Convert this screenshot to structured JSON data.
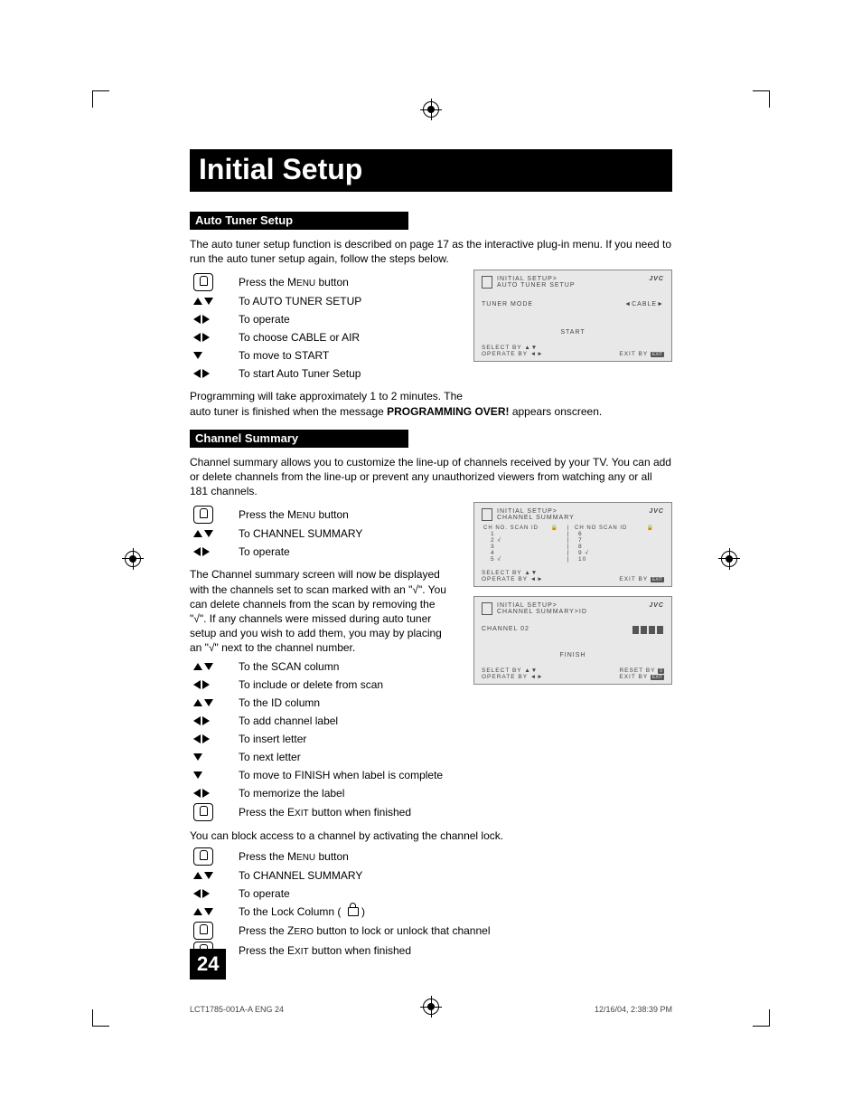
{
  "page_title": "Initial Setup",
  "section1": {
    "heading": "Auto Tuner Setup",
    "intro": "The auto tuner setup function is described on page 17 as the interactive plug-in menu.  If you need to run the auto tuner setup again, follow the steps below.",
    "steps": [
      {
        "icon": "hand",
        "text": "Press the MENU button"
      },
      {
        "icon": "updown",
        "text": "To AUTO TUNER SETUP"
      },
      {
        "icon": "leftright",
        "text": "To operate"
      },
      {
        "icon": "leftright",
        "text": "To choose CABLE or AIR"
      },
      {
        "icon": "down",
        "text": "To move to START"
      },
      {
        "icon": "leftright",
        "text": "To start Auto Tuner Setup"
      }
    ],
    "outro_a": "Programming will take approximately 1 to 2 minutes.  The",
    "outro_b": "auto tuner is finished when the message ",
    "outro_bold": "PROGRAMMING OVER!",
    "outro_c": " appears onscreen."
  },
  "section2": {
    "heading": "Channel Summary",
    "intro": "Channel summary allows you to customize the line-up of channels received by your TV. You can add or delete channels from the line-up or prevent any unauthorized viewers from watching any or all 181 channels.",
    "steps_a": [
      {
        "icon": "hand",
        "text": "Press the MENU button"
      },
      {
        "icon": "updown",
        "text": "To CHANNEL SUMMARY"
      },
      {
        "icon": "leftright",
        "text": "To operate"
      }
    ],
    "para": "The Channel summary screen will now be displayed with the channels set to scan marked with an \"√\". You can delete channels from the scan by removing the \"√\". If any channels were missed during auto tuner setup and you wish to add them, you may by placing an \"√\" next to the channel number.",
    "steps_b": [
      {
        "icon": "updown",
        "text": "To the SCAN column"
      },
      {
        "icon": "leftright",
        "text": "To include or delete from scan"
      },
      {
        "icon": "updown",
        "text": "To the ID column"
      },
      {
        "icon": "leftright",
        "text": "To add channel label"
      },
      {
        "icon": "leftright",
        "text": "To insert letter"
      },
      {
        "icon": "down",
        "text": "To next letter"
      },
      {
        "icon": "down",
        "text": "To move to FINISH when label is complete"
      },
      {
        "icon": "leftright",
        "text": "To memorize the label"
      },
      {
        "icon": "hand",
        "text": "Press the EXIT button when finished"
      }
    ],
    "lock_intro": "You can block access to a channel by activating the channel lock.",
    "steps_c": [
      {
        "icon": "hand",
        "text": "Press the MENU button"
      },
      {
        "icon": "updown",
        "text": "To CHANNEL SUMMARY"
      },
      {
        "icon": "leftright",
        "text": "To operate"
      },
      {
        "icon": "updown",
        "text": "To the Lock Column ( LOCK )"
      },
      {
        "icon": "hand",
        "text": "Press the ZERO button to lock or unlock that channel"
      },
      {
        "icon": "hand",
        "text": "Press the EXIT button when finished"
      }
    ]
  },
  "osd1": {
    "breadcrumb1": "INITIAL SETUP>",
    "breadcrumb2": "AUTO TUNER SETUP",
    "brand": "JVC",
    "tuner_mode_label": "TUNER MODE",
    "tuner_mode_value": "CABLE",
    "start": "START",
    "select": "SELECT  BY",
    "operate": "OPERATE BY",
    "exit": "EXIT BY"
  },
  "osd2": {
    "breadcrumb1": "INITIAL SETUP>",
    "breadcrumb2": "CHANNEL SUMMARY",
    "brand": "JVC",
    "col_left": "CH NO. SCAN ID",
    "col_right": "CH NO SCAN ID",
    "rows_left": [
      [
        "1",
        ""
      ],
      [
        "2",
        "√"
      ],
      [
        "3",
        ""
      ],
      [
        "4",
        ""
      ],
      [
        "5",
        "√"
      ]
    ],
    "rows_right": [
      [
        "6",
        ""
      ],
      [
        "7",
        ""
      ],
      [
        "8",
        ""
      ],
      [
        "9",
        "√"
      ],
      [
        "10",
        ""
      ]
    ],
    "select": "SELECT  BY",
    "operate": "OPERATE BY",
    "exit": "EXIT BY"
  },
  "osd3": {
    "breadcrumb1": "INITIAL SETUP>",
    "breadcrumb2": "CHANNEL SUMMARY>ID",
    "brand": "JVC",
    "channel": "CHANNEL  02",
    "finish": "FINISH",
    "select": "SELECT  BY",
    "operate": "OPERATE BY",
    "reset": "RESET BY",
    "exit": "EXIT BY"
  },
  "page_number": "24",
  "footer_left": "LCT1785-001A-A ENG   24",
  "footer_right": "12/16/04, 2:38:39 PM",
  "colors": {
    "black": "#000000",
    "osd_bg": "#e8e8e8",
    "osd_text": "#444444"
  }
}
